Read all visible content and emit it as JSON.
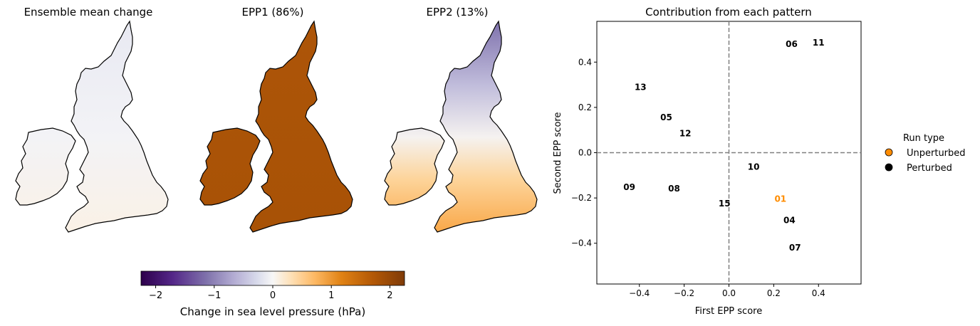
{
  "maps": {
    "titles": [
      "Ensemble mean change",
      "EPP1 (86%)",
      "EPP2 (13%)"
    ]
  },
  "colorbar": {
    "label": "Change in sea level pressure (hPa)",
    "ticks": [
      "−2",
      "−1",
      "0",
      "1",
      "2"
    ],
    "tick_values": [
      -2,
      -1,
      0,
      1,
      2
    ],
    "range": [
      -2.25,
      2.25
    ],
    "colors": [
      "#2d004b",
      "#542788",
      "#8073ac",
      "#b2abd2",
      "#d8daeb",
      "#f7f7f7",
      "#fee0b6",
      "#fdb863",
      "#e08214",
      "#b35806",
      "#7f3b08"
    ]
  },
  "chart_data": {
    "type": "scatter",
    "title": "Contribution from each pattern",
    "xlabel": "First EPP score",
    "ylabel": "Second EPP score",
    "xlim": [
      -0.59,
      0.59
    ],
    "ylim": [
      -0.58,
      0.58
    ],
    "xticks": [
      -0.4,
      -0.2,
      0.0,
      0.2,
      0.4
    ],
    "xtick_labels": [
      "−0.4",
      "−0.2",
      "0.0",
      "0.2",
      "0.4"
    ],
    "yticks": [
      -0.4,
      -0.2,
      0.0,
      0.2,
      0.4
    ],
    "ytick_labels": [
      "−0.4",
      "−0.2",
      "0.0",
      "0.2",
      "0.4"
    ],
    "reference_lines": {
      "x": 0,
      "y": 0,
      "style": "dashed",
      "color": "#808080"
    },
    "points": [
      {
        "label": "06",
        "x": 0.28,
        "y": 0.48,
        "run_type": "Perturbed"
      },
      {
        "label": "11",
        "x": 0.4,
        "y": 0.485,
        "run_type": "Perturbed"
      },
      {
        "label": "13",
        "x": -0.395,
        "y": 0.29,
        "run_type": "Perturbed"
      },
      {
        "label": "05",
        "x": -0.28,
        "y": 0.155,
        "run_type": "Perturbed"
      },
      {
        "label": "12",
        "x": -0.195,
        "y": 0.085,
        "run_type": "Perturbed"
      },
      {
        "label": "10",
        "x": 0.11,
        "y": -0.063,
        "run_type": "Perturbed"
      },
      {
        "label": "09",
        "x": -0.445,
        "y": -0.152,
        "run_type": "Perturbed"
      },
      {
        "label": "08",
        "x": -0.245,
        "y": -0.158,
        "run_type": "Perturbed"
      },
      {
        "label": "01",
        "x": 0.23,
        "y": -0.205,
        "run_type": "Unperturbed"
      },
      {
        "label": "15",
        "x": -0.02,
        "y": -0.225,
        "run_type": "Perturbed"
      },
      {
        "label": "04",
        "x": 0.27,
        "y": -0.298,
        "run_type": "Perturbed"
      },
      {
        "label": "07",
        "x": 0.295,
        "y": -0.42,
        "run_type": "Perturbed"
      }
    ],
    "legend": {
      "title": "Run type",
      "placement": "right, outside",
      "entries": [
        {
          "name": "Unperturbed",
          "color": "#ff8c00"
        },
        {
          "name": "Perturbed",
          "color": "#000000"
        }
      ]
    }
  }
}
